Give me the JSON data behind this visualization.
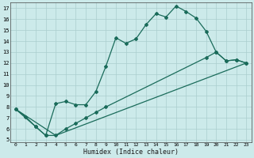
{
  "xlabel": "Humidex (Indice chaleur)",
  "line_color": "#1a6b5a",
  "bg_color": "#cceaea",
  "grid_color": "#aacece",
  "xlim": [
    -0.5,
    23.5
  ],
  "ylim": [
    4.8,
    17.5
  ],
  "xticks": [
    0,
    1,
    2,
    3,
    4,
    5,
    6,
    7,
    8,
    9,
    10,
    11,
    12,
    13,
    14,
    15,
    16,
    17,
    18,
    19,
    20,
    21,
    22,
    23
  ],
  "yticks": [
    5,
    6,
    7,
    8,
    9,
    10,
    11,
    12,
    13,
    14,
    15,
    16,
    17
  ],
  "line1_x": [
    0,
    1,
    2,
    3,
    4,
    5,
    6,
    7,
    8,
    9,
    10,
    11,
    12,
    13,
    14,
    15,
    16,
    17,
    18,
    19,
    20,
    21,
    22,
    23
  ],
  "line1_y": [
    7.8,
    7.1,
    6.2,
    5.4,
    8.3,
    8.5,
    8.2,
    8.2,
    9.4,
    11.7,
    14.3,
    13.8,
    14.2,
    15.5,
    16.5,
    16.2,
    17.2,
    16.7,
    16.1,
    14.9,
    13.0,
    12.2,
    12.3,
    12.0
  ],
  "line2_x": [
    0,
    2,
    3,
    4,
    5,
    6,
    7,
    8,
    9,
    19,
    20,
    21,
    22,
    23
  ],
  "line2_y": [
    7.8,
    6.2,
    5.4,
    5.4,
    6.0,
    6.5,
    7.0,
    7.5,
    8.0,
    12.5,
    13.0,
    12.2,
    12.3,
    12.0
  ],
  "line3_x": [
    0,
    4,
    23
  ],
  "line3_y": [
    7.8,
    5.4,
    12.0
  ]
}
